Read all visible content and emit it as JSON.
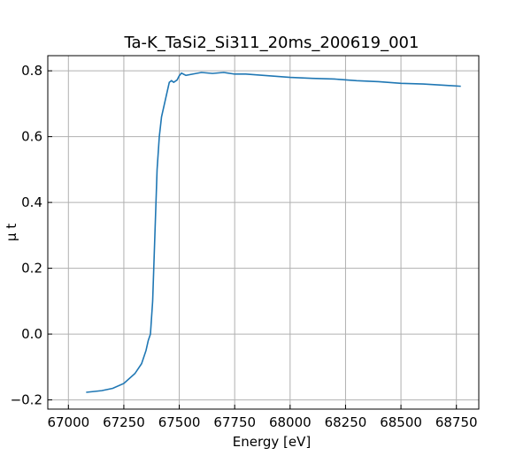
{
  "chart_data": {
    "type": "line",
    "title": "Ta-K_TaSi2_Si311_20ms_200619_001",
    "x_label": "Energy [eV]",
    "y_label": "μ t",
    "x": [
      67080,
      67150,
      67200,
      67250,
      67300,
      67330,
      67350,
      67360,
      67370,
      67380,
      67390,
      67400,
      67410,
      67420,
      67440,
      67455,
      67465,
      67475,
      67490,
      67500,
      67510,
      67530,
      67560,
      67600,
      67650,
      67700,
      67750,
      67800,
      67900,
      68000,
      68100,
      68200,
      68300,
      68400,
      68500,
      68600,
      68700,
      68770
    ],
    "series": [
      {
        "name": "mu",
        "color": "#1f77b4",
        "values": [
          -0.177,
          -0.172,
          -0.165,
          -0.15,
          -0.12,
          -0.09,
          -0.05,
          -0.02,
          0.0,
          0.1,
          0.3,
          0.5,
          0.6,
          0.66,
          0.72,
          0.765,
          0.77,
          0.765,
          0.772,
          0.785,
          0.793,
          0.786,
          0.79,
          0.795,
          0.792,
          0.795,
          0.79,
          0.79,
          0.785,
          0.78,
          0.777,
          0.775,
          0.77,
          0.767,
          0.762,
          0.76,
          0.756,
          0.753
        ]
      }
    ],
    "xlim": [
      66907,
      68851
    ],
    "ylim": [
      -0.228,
      0.846
    ],
    "xticks": [
      67000,
      67250,
      67500,
      67750,
      68000,
      68250,
      68500,
      68750
    ],
    "yticks": [
      {
        "value": -0.2,
        "label": "−0.2"
      },
      {
        "value": 0,
        "label": "0.0"
      },
      0.2,
      0.4,
      0.6,
      0.8
    ],
    "grid": true
  }
}
